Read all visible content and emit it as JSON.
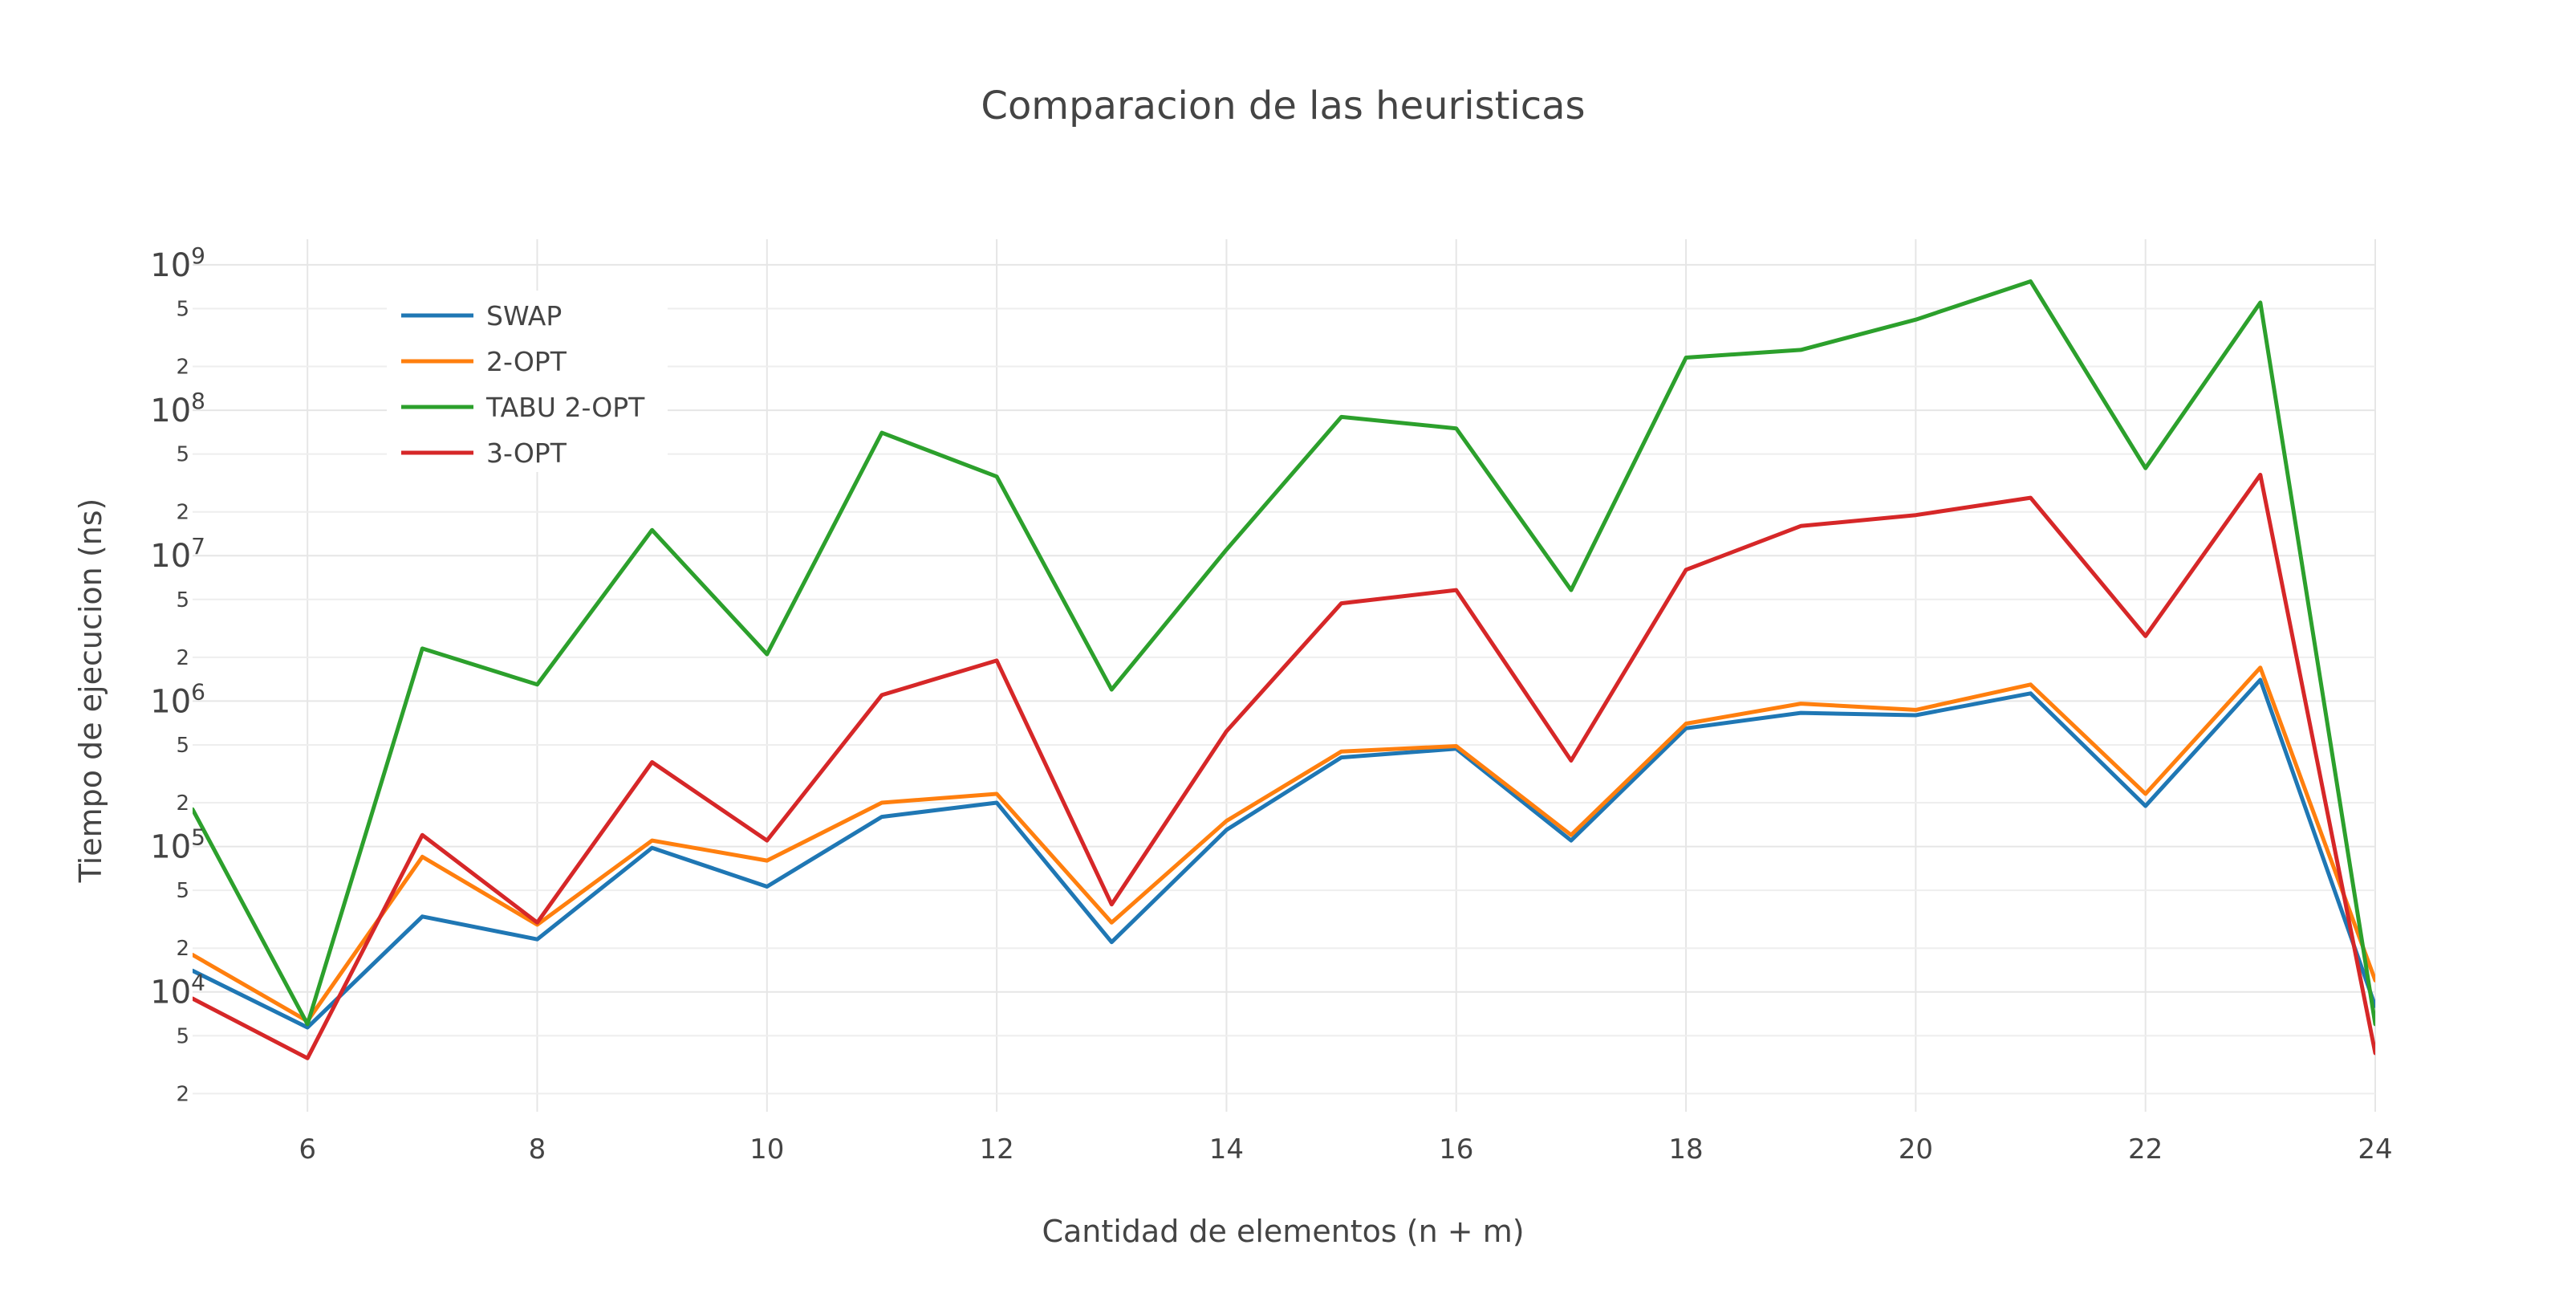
{
  "chart_data": {
    "type": "line",
    "title": "Comparacion de las heuristicas",
    "xlabel": "Cantidad de elementos (n + m)",
    "ylabel": "Tiempo de ejecucion (ns)",
    "x_scale": "linear",
    "y_scale": "log",
    "xlim": [
      5,
      24
    ],
    "ylim": [
      1500,
      1500000000
    ],
    "x_ticks": [
      6,
      8,
      10,
      12,
      14,
      16,
      18,
      20,
      22,
      24
    ],
    "y_major_ticks": [
      {
        "value": 10000,
        "base": "10",
        "exp": "4"
      },
      {
        "value": 100000,
        "base": "10",
        "exp": "5"
      },
      {
        "value": 1000000,
        "base": "10",
        "exp": "6"
      },
      {
        "value": 10000000,
        "base": "10",
        "exp": "7"
      },
      {
        "value": 100000000,
        "base": "10",
        "exp": "8"
      },
      {
        "value": 1000000000,
        "base": "10",
        "exp": "9"
      }
    ],
    "y_minor_ticks": [
      {
        "value": 2000,
        "label": "2"
      },
      {
        "value": 5000,
        "label": "5"
      },
      {
        "value": 20000,
        "label": "2"
      },
      {
        "value": 50000,
        "label": "5"
      },
      {
        "value": 200000,
        "label": "2"
      },
      {
        "value": 500000,
        "label": "5"
      },
      {
        "value": 2000000,
        "label": "2"
      },
      {
        "value": 5000000,
        "label": "5"
      },
      {
        "value": 20000000,
        "label": "2"
      },
      {
        "value": 50000000,
        "label": "5"
      },
      {
        "value": 200000000,
        "label": "2"
      },
      {
        "value": 500000000,
        "label": "5"
      }
    ],
    "grid": true,
    "legend_position": "top-left",
    "x": [
      5,
      6,
      7,
      8,
      9,
      10,
      11,
      12,
      13,
      14,
      15,
      16,
      17,
      18,
      19,
      20,
      21,
      22,
      23,
      24
    ],
    "series": [
      {
        "name": "SWAP",
        "color": "#1f77b4",
        "values": [
          14000,
          5700,
          33000,
          23000,
          98000,
          53000,
          160000,
          200000,
          22000,
          130000,
          410000,
          470000,
          110000,
          650000,
          830000,
          800000,
          1130000,
          190000,
          1400000,
          8000
        ]
      },
      {
        "name": "2-OPT",
        "color": "#ff7f0e",
        "values": [
          18000,
          6300,
          85000,
          29000,
          110000,
          80000,
          200000,
          230000,
          30000,
          150000,
          450000,
          490000,
          120000,
          700000,
          960000,
          870000,
          1300000,
          230000,
          1700000,
          12000
        ]
      },
      {
        "name": "TABU 2-OPT",
        "color": "#2ca02c",
        "values": [
          180000,
          6000,
          2300000,
          1300000,
          15000000,
          2100000,
          70000000,
          35000000,
          1200000,
          11000000,
          90000000,
          75000000,
          5800000,
          230000000,
          260000000,
          420000000,
          770000000,
          40000000,
          550000000,
          6000
        ]
      },
      {
        "name": "3-OPT",
        "color": "#d62728",
        "values": [
          9000,
          3500,
          120000,
          30000,
          380000,
          110000,
          1100000,
          1900000,
          40000,
          620000,
          4700000,
          5800000,
          390000,
          8000000,
          16000000,
          19000000,
          25000000,
          2800000,
          36000000,
          3800
        ]
      }
    ]
  }
}
